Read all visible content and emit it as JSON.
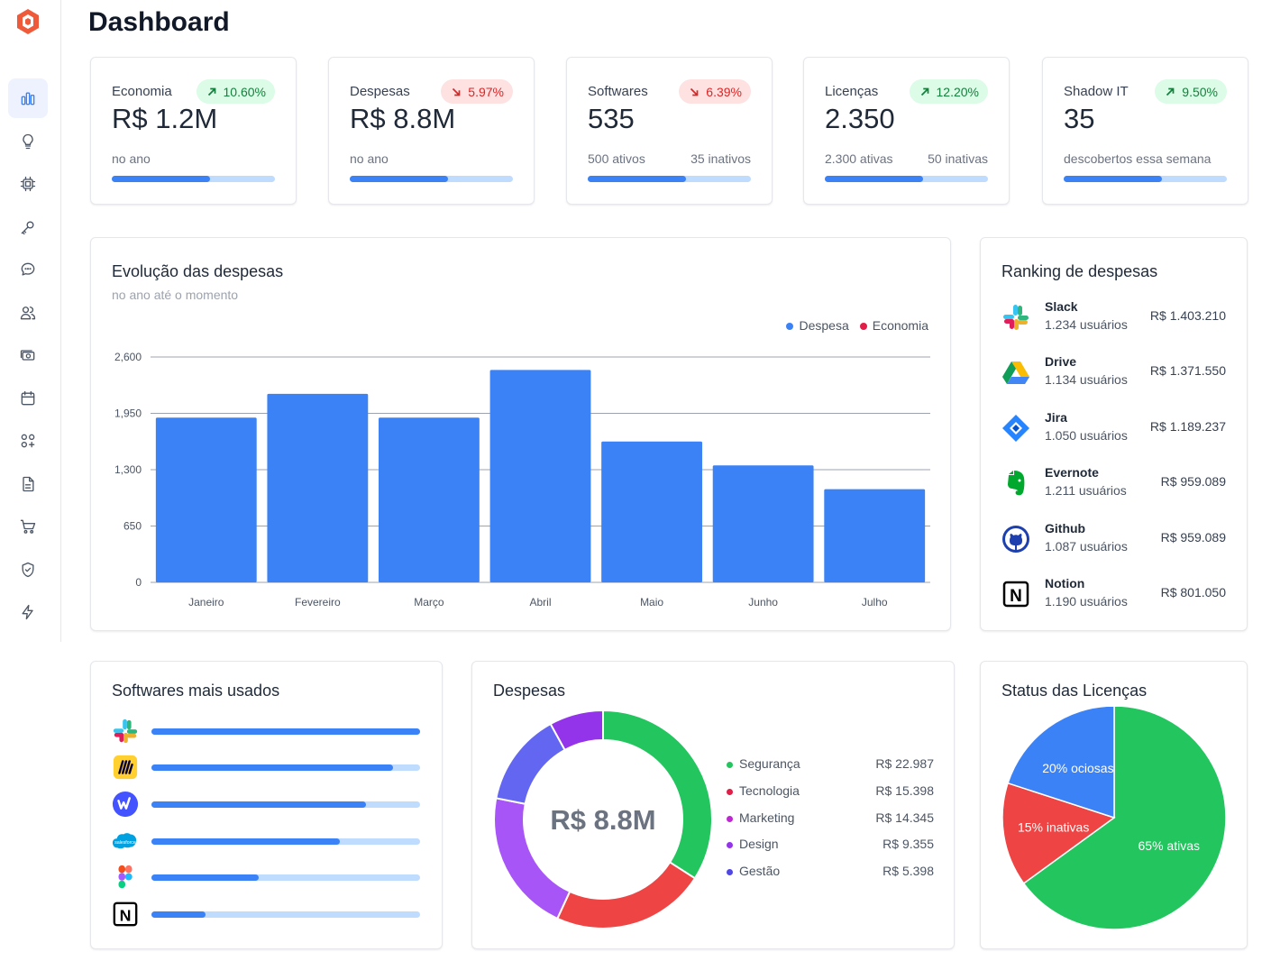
{
  "page": {
    "title": "Dashboard"
  },
  "sidebar": {
    "logo": "hexagon-logo-icon",
    "items": [
      {
        "icon": "bar-chart-icon",
        "active": true
      },
      {
        "icon": "lightbulb-icon",
        "active": false
      },
      {
        "icon": "cpu-chip-icon",
        "active": false
      },
      {
        "icon": "key-icon",
        "active": false
      },
      {
        "icon": "chat-bubble-icon",
        "active": false
      },
      {
        "icon": "users-icon",
        "active": false
      },
      {
        "icon": "money-icon",
        "active": false
      },
      {
        "icon": "calendar-icon",
        "active": false
      },
      {
        "icon": "apps-grid-icon",
        "active": false
      },
      {
        "icon": "document-icon",
        "active": false
      },
      {
        "icon": "cart-icon",
        "active": false
      },
      {
        "icon": "shield-check-icon",
        "active": false
      },
      {
        "icon": "bolt-icon",
        "active": false
      }
    ]
  },
  "kpis": [
    {
      "label": "Economia",
      "value": "R$ 1.2M",
      "change": "10.60%",
      "trend": "up",
      "sub_left": "no ano",
      "sub_right": "",
      "progress": 0.6
    },
    {
      "label": "Despesas",
      "value": "R$ 8.8M",
      "change": "5.97%",
      "trend": "down",
      "sub_left": "no ano",
      "sub_right": "",
      "progress": 0.6
    },
    {
      "label": "Softwares",
      "value": "535",
      "change": "6.39%",
      "trend": "down",
      "sub_left": "500 ativos",
      "sub_right": "35 inativos",
      "progress": 0.6
    },
    {
      "label": "Licenças",
      "value": "2.350",
      "change": "12.20%",
      "trend": "up",
      "sub_left": "2.300 ativas",
      "sub_right": "50 inativas",
      "progress": 0.6
    },
    {
      "label": "Shadow IT",
      "value": "35",
      "change": "9.50%",
      "trend": "up",
      "sub_left": "descobertos essa semana",
      "sub_right": "",
      "progress": 0.6
    }
  ],
  "expenses_chart": {
    "title": "Evolução das despesas",
    "subtitle": "no ano até o momento",
    "legend": [
      {
        "label": "Despesa",
        "color": "#3b82f6"
      },
      {
        "label": "Economia",
        "color": "#e11d48"
      }
    ]
  },
  "chart_data": [
    {
      "type": "bar",
      "title": "Evolução das despesas",
      "categories": [
        "Janeiro",
        "Fevereiro",
        "Março",
        "Abril",
        "Maio",
        "Junho",
        "Julho"
      ],
      "series": [
        {
          "name": "Despesa",
          "values": [
            1900,
            2175,
            1900,
            2450,
            1625,
            1350,
            1075
          ]
        }
      ],
      "y_ticks": [
        "0",
        "650",
        "1,300",
        "1,950",
        "2,600"
      ],
      "ylim": [
        0,
        2600
      ],
      "grid": true,
      "legend_position": "top-right"
    },
    {
      "type": "pie",
      "title": "Despesas",
      "center_label": "R$ 8.8M",
      "slices": [
        {
          "label": "Segurança",
          "value": 22987,
          "color": "#22c55e"
        },
        {
          "label": "Tecnologia",
          "value": 15398,
          "color": "#ef4444"
        },
        {
          "label": "Marketing",
          "value": 14345,
          "color": "#a855f7"
        },
        {
          "label": "Design",
          "value": 9355,
          "color": "#6366f1"
        },
        {
          "label": "Gestão",
          "value": 5398,
          "color": "#9333ea"
        }
      ]
    },
    {
      "type": "pie",
      "title": "Status das Licenças",
      "slices": [
        {
          "label": "65% ativas",
          "value": 65,
          "color": "#22c55e"
        },
        {
          "label": "15% inativas",
          "value": 15,
          "color": "#ef4444"
        },
        {
          "label": "20% ociosas",
          "value": 20,
          "color": "#3b82f6"
        }
      ]
    }
  ],
  "ranking": {
    "title": "Ranking de despesas",
    "items": [
      {
        "name": "Slack",
        "users": "1.234 usuários",
        "amount": "R$ 1.403.210",
        "icon": "slack-icon"
      },
      {
        "name": "Drive",
        "users": "1.134 usuários",
        "amount": "R$ 1.371.550",
        "icon": "google-drive-icon"
      },
      {
        "name": "Jira",
        "users": "1.050 usuários",
        "amount": "R$ 1.189.237",
        "icon": "jira-icon"
      },
      {
        "name": "Evernote",
        "users": "1.211 usuários",
        "amount": "R$ 959.089",
        "icon": "evernote-icon"
      },
      {
        "name": "Github",
        "users": "1.087 usuários",
        "amount": "R$ 959.089",
        "icon": "github-icon"
      },
      {
        "name": "Notion",
        "users": "1.190 usuários",
        "amount": "R$ 801.050",
        "icon": "notion-icon"
      }
    ]
  },
  "most_used": {
    "title": "Softwares mais usados",
    "items": [
      {
        "icon": "slack-icon",
        "level": 1.0
      },
      {
        "icon": "miro-icon",
        "level": 0.9
      },
      {
        "icon": "webflow-icon",
        "level": 0.8
      },
      {
        "icon": "salesforce-icon",
        "level": 0.7
      },
      {
        "icon": "figma-icon",
        "level": 0.4
      },
      {
        "icon": "notion-icon",
        "level": 0.2
      }
    ],
    "salesforce_text": "salesforce"
  },
  "despesas": {
    "title": "Despesas",
    "center": "R$ 8.8M",
    "items": [
      {
        "label": "Segurança",
        "amount": "R$ 22.987",
        "color": "#22c55e"
      },
      {
        "label": "Tecnologia",
        "amount": "R$ 15.398",
        "color": "#e11d48"
      },
      {
        "label": "Marketing",
        "amount": "R$ 14.345",
        "color": "#c026d3"
      },
      {
        "label": "Design",
        "amount": "R$ 9.355",
        "color": "#9333ea"
      },
      {
        "label": "Gestão",
        "amount": "R$ 5.398",
        "color": "#4f46e5"
      }
    ]
  },
  "licenses": {
    "title": "Status das Licenças"
  }
}
